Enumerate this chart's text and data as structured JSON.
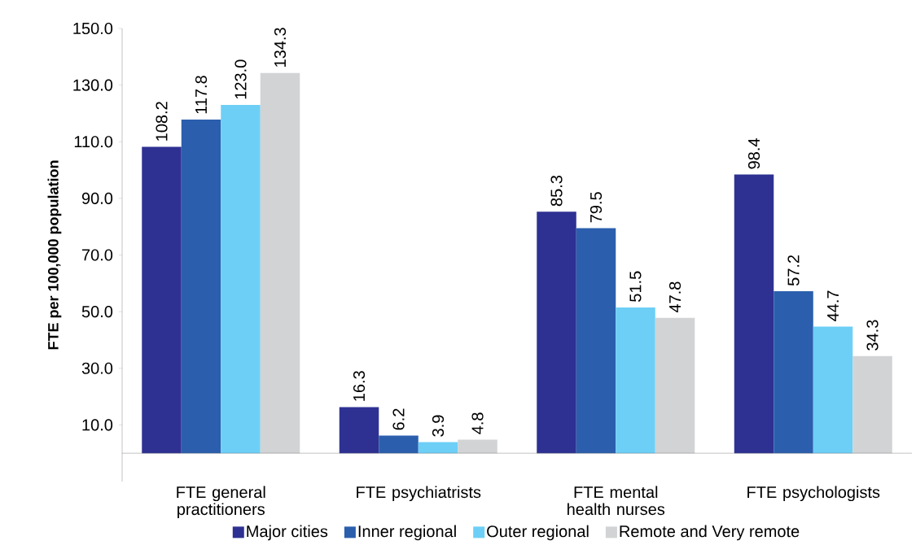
{
  "chart_data": {
    "type": "bar",
    "ylabel": "FTE per 100,000 population",
    "categories": [
      "FTE general practitioners",
      "FTE psychiatrists",
      "FTE mental health nurses",
      "FTE psychologists"
    ],
    "series": [
      {
        "name": "Major cities",
        "color": "#2e3192",
        "values": [
          108.2,
          16.3,
          85.3,
          98.4
        ],
        "value_labels": [
          "108.2",
          "16.3",
          "85.3",
          "98.4"
        ]
      },
      {
        "name": "Inner regional",
        "color": "#2b5fad",
        "values": [
          117.8,
          6.2,
          79.5,
          57.2
        ],
        "value_labels": [
          "117.8",
          "6.2",
          "79.5",
          "57.2"
        ]
      },
      {
        "name": "Outer regional",
        "color": "#6dcff6",
        "values": [
          123.0,
          3.9,
          51.5,
          44.7
        ],
        "value_labels": [
          "123.0",
          "3.9",
          "51.5",
          "44.7"
        ]
      },
      {
        "name": "Remote and Very remote",
        "color": "#d1d3d4",
        "values": [
          134.3,
          4.8,
          47.8,
          34.3
        ],
        "value_labels": [
          "134.3",
          "4.8",
          "47.8",
          "34.3"
        ]
      }
    ],
    "ylim": [
      -10,
      150
    ],
    "yticks": [
      {
        "value": 10,
        "label": "10.0"
      },
      {
        "value": 30,
        "label": "30.0"
      },
      {
        "value": 50,
        "label": "50.0"
      },
      {
        "value": 70,
        "label": "70.0"
      },
      {
        "value": 90,
        "label": "90.0"
      },
      {
        "value": 110,
        "label": "110.0"
      },
      {
        "value": 130,
        "label": "130.0"
      },
      {
        "value": 150,
        "label": "150.0"
      }
    ],
    "legend": "bottom",
    "grid": false
  }
}
